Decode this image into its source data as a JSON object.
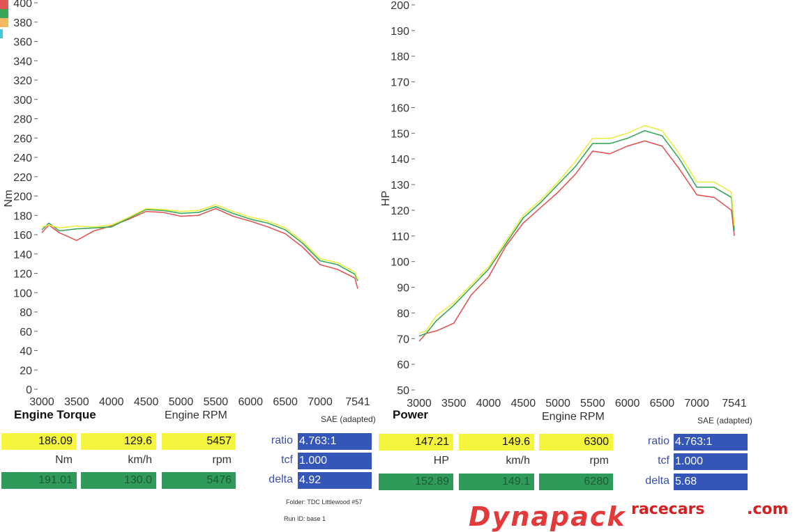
{
  "chart_data": [
    {
      "type": "line",
      "title": "Engine Torque",
      "xlabel": "Engine RPM",
      "ylabel": "Nm",
      "note": "SAE (adapted)",
      "xlim": [
        3000,
        7541
      ],
      "ylim": [
        0,
        400
      ],
      "xticks": [
        3000,
        3500,
        4000,
        4500,
        5000,
        5500,
        6000,
        6500,
        7000,
        7541
      ],
      "yticks": [
        0,
        20,
        40,
        60,
        80,
        100,
        120,
        140,
        160,
        180,
        200,
        220,
        240,
        260,
        280,
        300,
        320,
        340,
        360,
        380,
        400
      ],
      "x": [
        3000,
        3100,
        3250,
        3500,
        3750,
        4000,
        4250,
        4500,
        4750,
        5000,
        5250,
        5500,
        5750,
        6000,
        6250,
        6500,
        6750,
        7000,
        7250,
        7500,
        7541
      ],
      "series": [
        {
          "color": "#e9ed45",
          "values": [
            168,
            170,
            167,
            169,
            168,
            170,
            178,
            187,
            186,
            184,
            185,
            191,
            184,
            178,
            174,
            167,
            153,
            135,
            131,
            121,
            114
          ]
        },
        {
          "color": "#3aa65a",
          "values": [
            165,
            172,
            164,
            166,
            167,
            168,
            177,
            186,
            185,
            182,
            183,
            189,
            182,
            176,
            172,
            165,
            151,
            133,
            129,
            119,
            112
          ]
        },
        {
          "color": "#e05656",
          "values": [
            162,
            170,
            162,
            154,
            164,
            169,
            176,
            184,
            183,
            179,
            180,
            187,
            179,
            174,
            168,
            161,
            147,
            129,
            124,
            115,
            104
          ]
        }
      ]
    },
    {
      "type": "line",
      "title": "Power",
      "xlabel": "Engine RPM",
      "ylabel": "HP",
      "note": "SAE (adapted)",
      "xlim": [
        3000,
        7541
      ],
      "ylim": [
        50,
        200
      ],
      "xticks": [
        3000,
        3500,
        4000,
        4500,
        5000,
        5500,
        6000,
        6500,
        7000,
        7541
      ],
      "yticks": [
        50,
        60,
        70,
        80,
        90,
        100,
        110,
        120,
        130,
        140,
        150,
        160,
        170,
        180,
        190,
        200
      ],
      "x": [
        3000,
        3100,
        3250,
        3500,
        3750,
        4000,
        4250,
        4500,
        4750,
        5000,
        5250,
        5500,
        5750,
        6000,
        6250,
        6500,
        6750,
        7000,
        7250,
        7500,
        7541
      ],
      "series": [
        {
          "color": "#e9ed45",
          "values": [
            72,
            73,
            79,
            84,
            91,
            98,
            108,
            118,
            124,
            131,
            139,
            148,
            148,
            150,
            153,
            151,
            142,
            131,
            131,
            127,
            114
          ]
        },
        {
          "color": "#3aa65a",
          "values": [
            71,
            72,
            77,
            83,
            90,
            97,
            107,
            117,
            123,
            130,
            137,
            146,
            146,
            148,
            151,
            149,
            140,
            129,
            129,
            125,
            112
          ]
        },
        {
          "color": "#e05656",
          "values": [
            69,
            72,
            73,
            76,
            87,
            94,
            106,
            115,
            121,
            127,
            134,
            143,
            142,
            145,
            147,
            145,
            136,
            126,
            125,
            120,
            110
          ]
        }
      ]
    }
  ],
  "torque": {
    "title": "Engine Torque",
    "xlabel": "Engine RPM",
    "sae": "SAE (adapted)",
    "r1": [
      "186.09",
      "129.6",
      "5457"
    ],
    "r2": [
      "Nm",
      "km/h",
      "rpm"
    ],
    "r3": [
      "191.01",
      "130.0",
      "5476"
    ],
    "ratio_label": "ratio",
    "ratio": "4.763:1",
    "tcf_label": "tcf",
    "tcf": "1.000",
    "delta_label": "delta",
    "delta": "4.92"
  },
  "power": {
    "title": "Power",
    "xlabel": "Engine RPM",
    "sae": "SAE (adapted)",
    "r1": [
      "147.21",
      "149.6",
      "6300"
    ],
    "r2": [
      "HP",
      "km/h",
      "rpm"
    ],
    "r3": [
      "152.89",
      "149.1",
      "6280"
    ],
    "ratio_label": "ratio",
    "ratio": "4.763:1",
    "tcf_label": "tcf",
    "tcf": "1.000",
    "delta_label": "delta",
    "delta": "5.68"
  },
  "footer": {
    "folder": "Folder:  TDC Littlewood #57",
    "run_id": "Run ID:  base 1",
    "brand": "Dynapack",
    "watermark_left": "racecars",
    "watermark_right": ".com"
  },
  "colors": {
    "yellow": "#f4f53c",
    "green": "#2f9a5a",
    "blue": "#3356b8",
    "legend": [
      "#e05656",
      "#3aa65a",
      "#f4b860",
      "#45c9d6"
    ]
  }
}
